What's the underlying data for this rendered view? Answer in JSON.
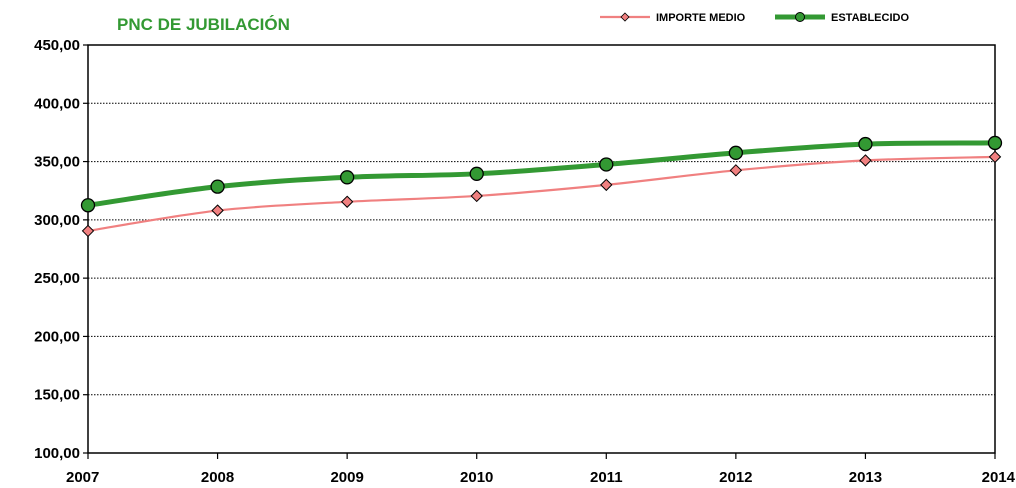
{
  "chart_data": {
    "type": "line",
    "title": "PNC DE JUBILACIÓN",
    "xlabel": "",
    "ylabel": "",
    "categories": [
      "2007",
      "2008",
      "2009",
      "2010",
      "2011",
      "2012",
      "2013",
      "2014"
    ],
    "ylim": [
      100,
      450
    ],
    "ytick_step": 50,
    "ytick_labels": [
      "100,00",
      "150,00",
      "200,00",
      "250,00",
      "300,00",
      "350,00",
      "400,00",
      "450,00"
    ],
    "grid": "horizontal",
    "legend_position": "top-right",
    "series": [
      {
        "name": "IMPORTE MEDIO",
        "values": [
          290.5,
          308.0,
          315.5,
          320.5,
          330.0,
          342.5,
          351.0,
          354.0
        ],
        "line_color": "#f08080",
        "marker": "diamond",
        "marker_color": "#f08080"
      },
      {
        "name": "ESTABLECIDO",
        "values": [
          312.5,
          328.5,
          336.5,
          339.5,
          347.5,
          357.5,
          365.0,
          366.0
        ],
        "line_color": "#339933",
        "marker": "circle",
        "marker_color": "#339933"
      }
    ],
    "title_color": "#339933"
  }
}
